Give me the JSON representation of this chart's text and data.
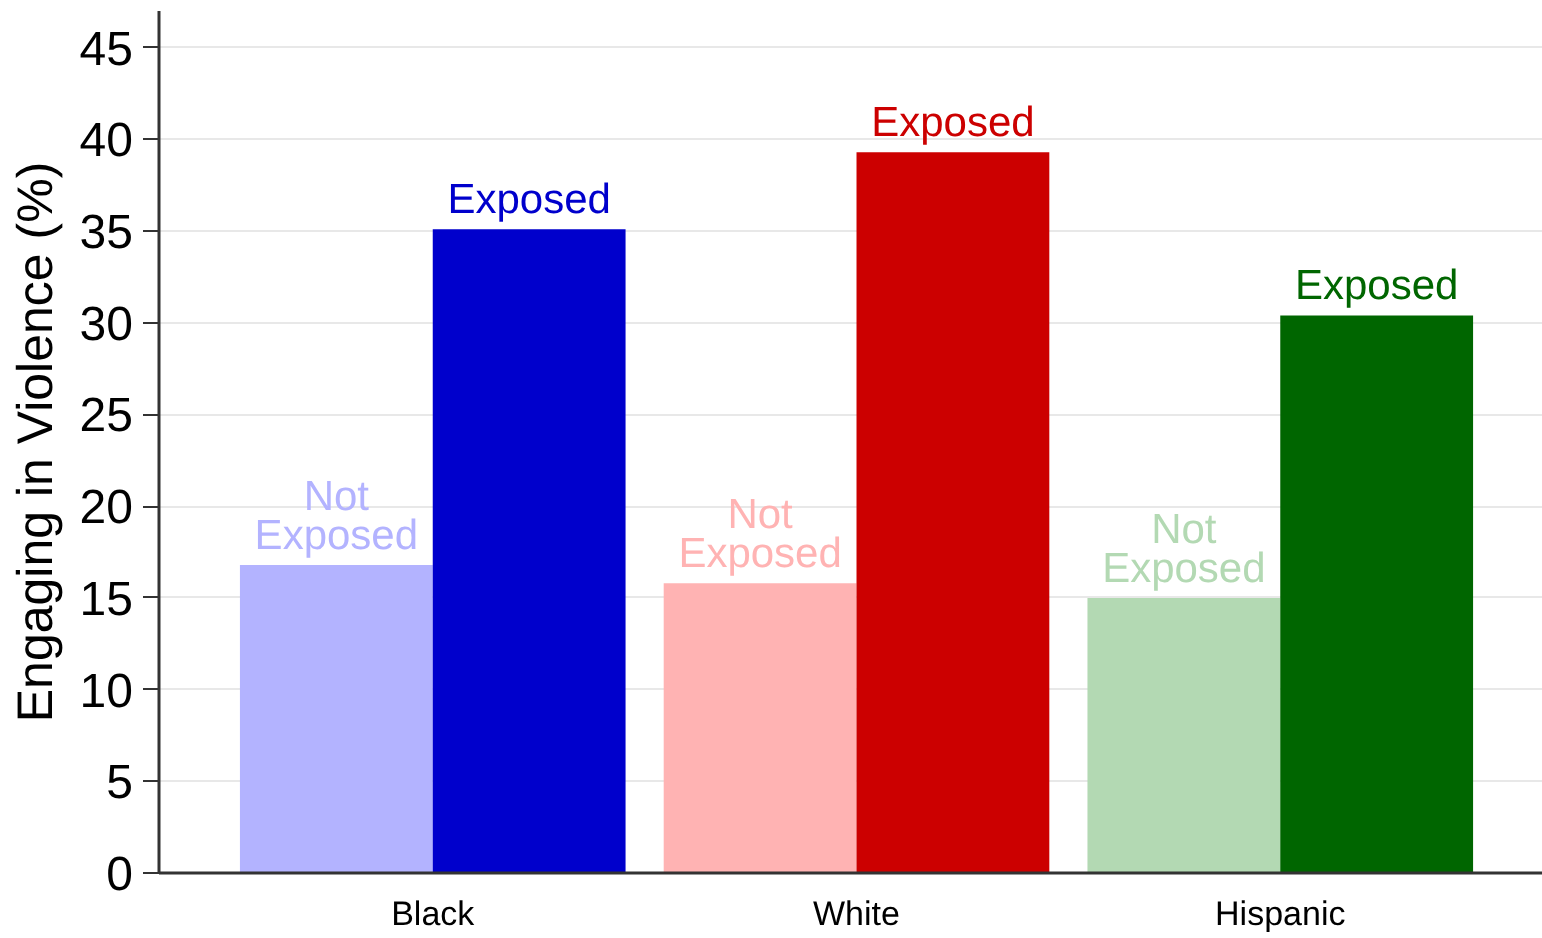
{
  "chart_data": {
    "type": "bar",
    "ylabel": "Engaging in Violence (%)",
    "categories": [
      "Black",
      "White",
      "Hispanic"
    ],
    "series": [
      {
        "name": "Not Exposed",
        "colors": [
          "#b3b3ff",
          "#ffb3b3",
          "#b3d9b3"
        ],
        "values": [
          16.8,
          15.8,
          15.0
        ]
      },
      {
        "name": "Exposed",
        "colors": [
          "#0000cc",
          "#cc0000",
          "#006600"
        ],
        "values": [
          35.1,
          39.3,
          30.4
        ]
      }
    ],
    "ylim": [
      0,
      47
    ],
    "yticks": [
      0,
      5,
      10,
      15,
      20,
      25,
      30,
      35,
      40,
      45
    ],
    "grid": "y"
  }
}
